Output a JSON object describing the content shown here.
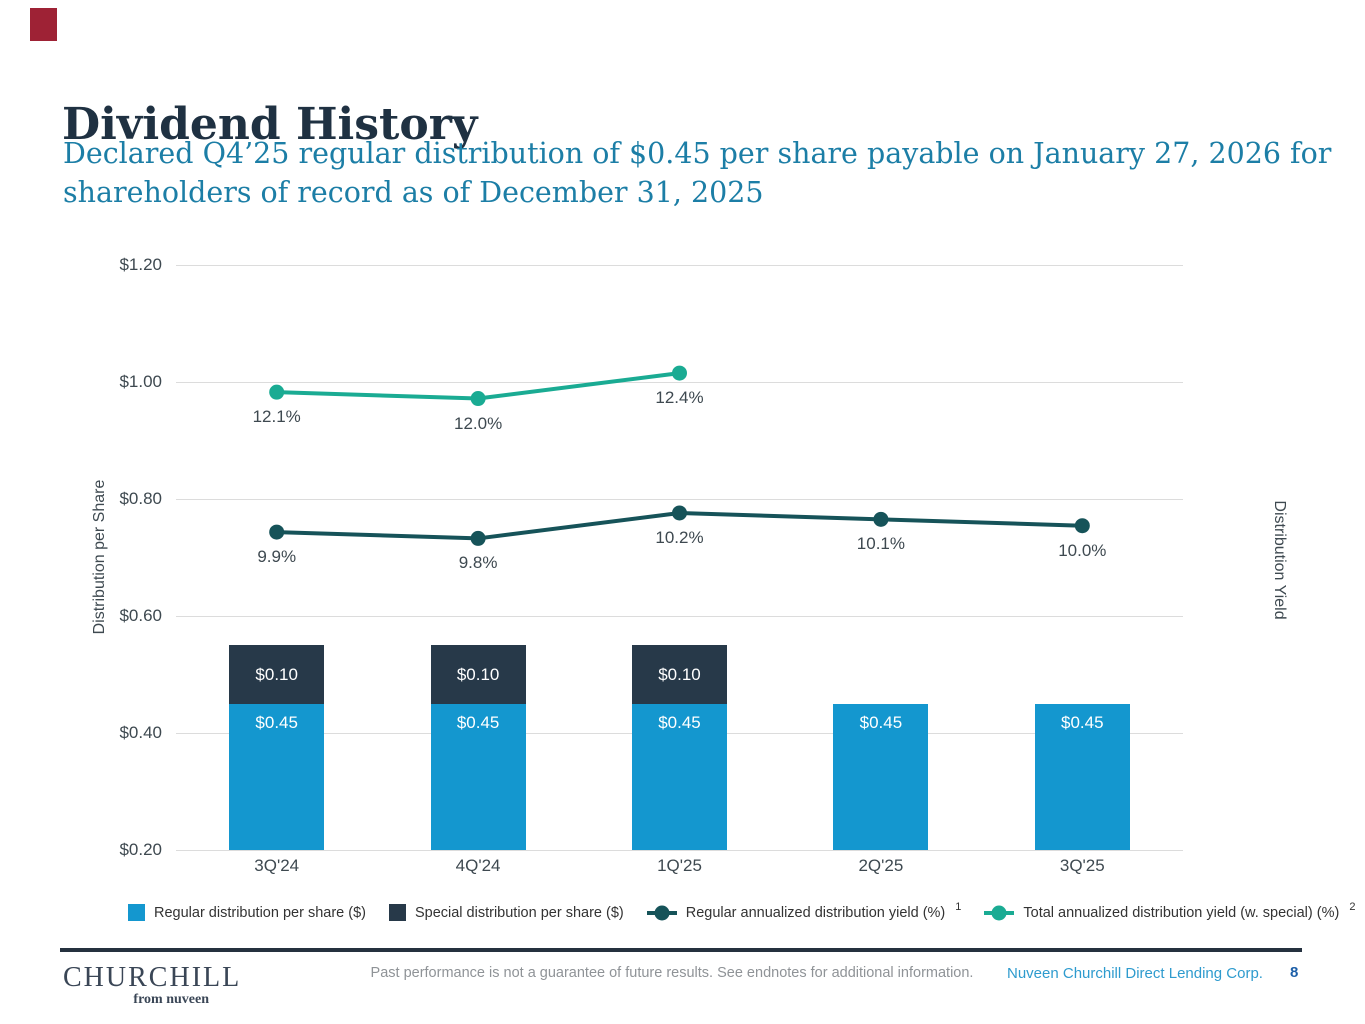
{
  "slide": {
    "title": "Dividend History",
    "subtitle_lines": [
      "Declared Q4’25 regular distribution of $0.45 per share payable on January 27, 2026 for",
      "shareholders of record as of December 31, 2025"
    ]
  },
  "chart_data": {
    "type": "bar",
    "subtype": "stacked-bar-with-lines",
    "categories": [
      "3Q'24",
      "4Q'24",
      "1Q'25",
      "2Q'25",
      "3Q'25"
    ],
    "bar_series": [
      {
        "name": "Regular distribution per share ($)",
        "color": "#1497CF",
        "values": [
          0.45,
          0.45,
          0.45,
          0.45,
          0.45
        ],
        "labels": [
          "$0.45",
          "$0.45",
          "$0.45",
          "$0.45",
          "$0.45"
        ]
      },
      {
        "name": "Special distribution per share ($)",
        "color": "#273949",
        "values": [
          0.1,
          0.1,
          0.1,
          null,
          null
        ],
        "labels": [
          "$0.10",
          "$0.10",
          "$0.10",
          "",
          ""
        ]
      }
    ],
    "line_series": [
      {
        "name": "Regular annualized distribution yield (%)",
        "color": "#165359",
        "values": [
          9.9,
          9.8,
          10.2,
          10.1,
          10.0
        ],
        "labels": [
          "9.9%",
          "9.8%",
          "10.2%",
          "10.1%",
          "10.0%"
        ]
      },
      {
        "name": "Total annualized distribution yield (w. special) (%)",
        "color": "#1AAB93",
        "values": [
          12.1,
          12.0,
          12.4,
          null,
          null
        ],
        "labels": [
          "12.1%",
          "12.0%",
          "12.4%",
          "",
          ""
        ]
      }
    ],
    "left_axis": {
      "title": "Distribution per Share",
      "min": 0.2,
      "max": 1.2,
      "tick_step": 0.2,
      "tick_labels": [
        "$1.20",
        "$1.00",
        "$0.80",
        "$0.60",
        "$0.40",
        "$0.20"
      ]
    },
    "right_axis": {
      "title": "Distribution Yield",
      "min": 4.9,
      "max": 14.1
    },
    "grid": true,
    "legend_position": "bottom"
  },
  "legend": {
    "items": [
      {
        "label": "Regular distribution per share ($)",
        "marker": "square",
        "color": "#1497CF",
        "sup": ""
      },
      {
        "label": "Special distribution per share ($)",
        "marker": "square",
        "color": "#273949",
        "sup": ""
      },
      {
        "label": "Regular annualized distribution yield (%)",
        "marker": "line-dot",
        "color": "#165359",
        "sup": "1"
      },
      {
        "label": "Total annualized distribution yield (w. special) (%)",
        "marker": "line-dot",
        "color": "#1AAB93",
        "sup": "2"
      }
    ]
  },
  "footer": {
    "logo_main": "CHURCHILL",
    "logo_sub": "from nuveen",
    "disclaimer": "Past performance is not a guarantee of future results. See endnotes for additional information.",
    "company": "Nuveen Churchill Direct Lending Corp.",
    "page": "8"
  },
  "colors": {
    "accent_red": "#9E2235",
    "title": "#1F3142",
    "subtitle": "#1C7EA6",
    "regular_bar": "#1497CF",
    "special_bar": "#273949",
    "regular_yield_line": "#165359",
    "total_yield_line": "#1AAB93",
    "gridline": "#DCDCDC",
    "axis_text": "#3E4950",
    "divider": "#25313F",
    "footer_text": "#8F9397",
    "footer_company": "#2E9BCE",
    "page_number": "#1D5FA8"
  }
}
